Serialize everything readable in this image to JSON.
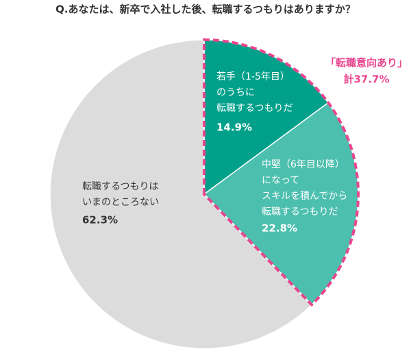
{
  "chart_data": {
    "type": "pie",
    "title": "Q.あなたは、新卒で入社した後、転職するつもりはありますか？",
    "labels": [
      [
        "若手（1-5年目）",
        "のうちに",
        "転職するつもりだ"
      ],
      [
        "中堅（6年目以降）",
        "になって",
        "スキルを積んでから",
        "転職するつもりだ"
      ],
      [
        "転職するつもりは",
        "いまのところない"
      ]
    ],
    "values": [
      14.9,
      22.8,
      62.3
    ],
    "value_labels": [
      "14.9%",
      "22.8%",
      "62.3%"
    ],
    "colors": [
      "#00a08a",
      "#4dbfae",
      "#dcdcdc"
    ],
    "annotation": [
      "「転職意向あり」",
      "計37.7%"
    ],
    "annotation_color": "#e8468f"
  }
}
